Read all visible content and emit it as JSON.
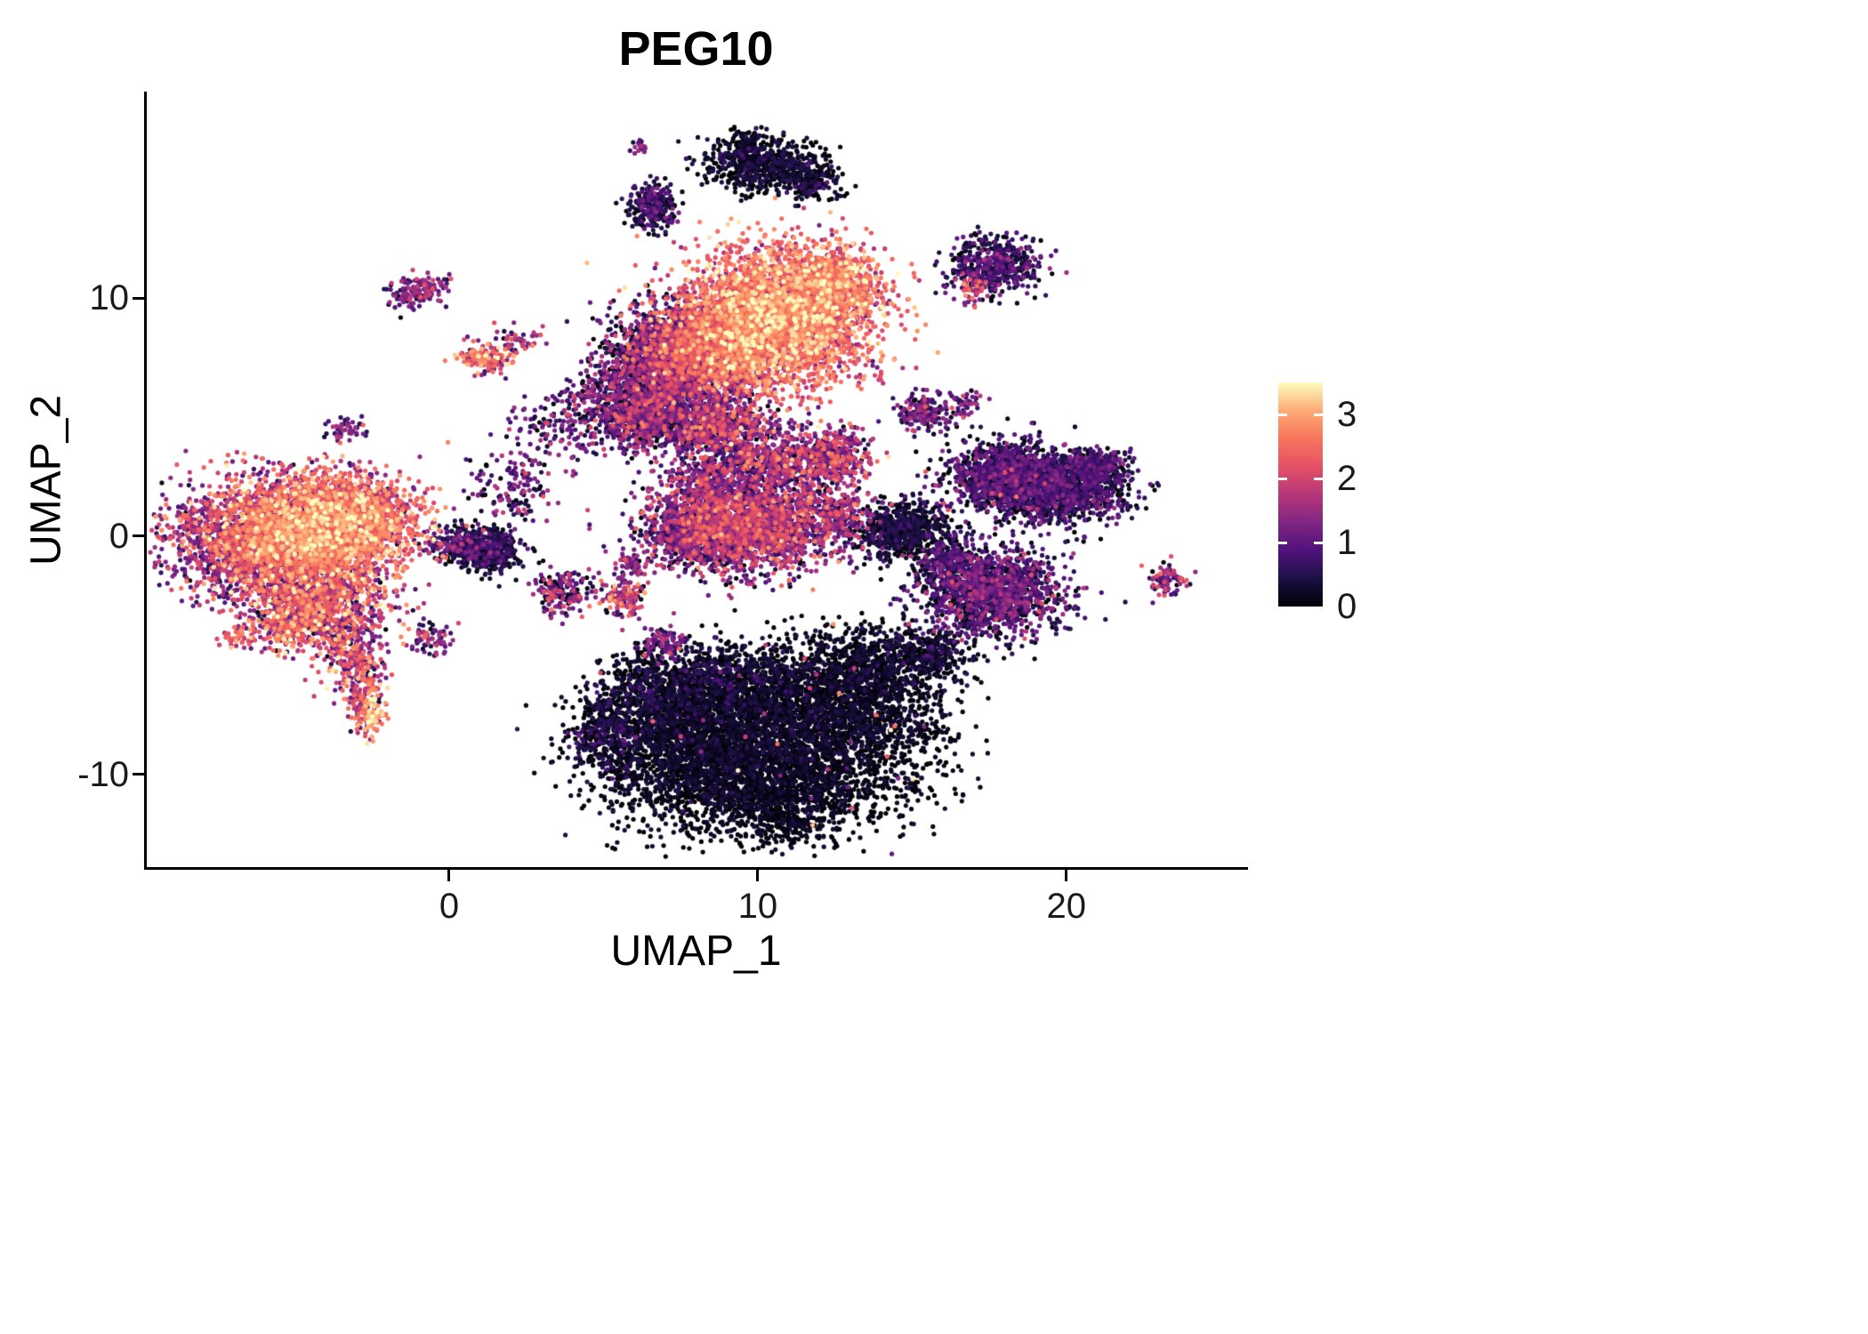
{
  "chart_data": {
    "type": "scatter",
    "title": "PEG10",
    "xlabel": "UMAP_1",
    "ylabel": "UMAP_2",
    "x_ticks": [
      "0",
      "10",
      "20"
    ],
    "x_tick_values": [
      0,
      10,
      20
    ],
    "y_ticks": [
      "10",
      "0",
      "-10"
    ],
    "y_tick_values": [
      10,
      0,
      -10
    ],
    "xlim": [
      -9.8,
      25.8
    ],
    "ylim": [
      -13.9,
      18.6
    ],
    "grid": false,
    "background": "#ffffff",
    "legend_position": "right",
    "point_radius": 2.6,
    "colorbar": {
      "ticks": [
        "0",
        "1",
        "2",
        "3"
      ],
      "tick_values": [
        0,
        1,
        2,
        3
      ],
      "max": 3.5,
      "colors": [
        {
          "t": 0.0,
          "c": "#000004"
        },
        {
          "t": 0.13,
          "c": "#1d1147"
        },
        {
          "t": 0.25,
          "c": "#51127c"
        },
        {
          "t": 0.38,
          "c": "#822681"
        },
        {
          "t": 0.5,
          "c": "#b73779"
        },
        {
          "t": 0.63,
          "c": "#e75263"
        },
        {
          "t": 0.75,
          "c": "#f8765c"
        },
        {
          "t": 0.87,
          "c": "#fda873"
        },
        {
          "t": 1.0,
          "c": "#fcfdbf"
        }
      ]
    },
    "clusters": [
      {
        "x": -4.6,
        "y": 0.2,
        "sx": 1.5,
        "sy": 1.1,
        "n": 2600,
        "e": 2.4,
        "es": 0.55
      },
      {
        "x": -6.3,
        "y": -0.3,
        "sx": 1.5,
        "sy": 1.2,
        "n": 1600,
        "e": 1.4,
        "es": 0.7
      },
      {
        "x": -3.0,
        "y": 0.8,
        "sx": 1.0,
        "sy": 0.9,
        "n": 900,
        "e": 2.1,
        "es": 0.7
      },
      {
        "x": -4.2,
        "y": -2.8,
        "sx": 1.1,
        "sy": 0.9,
        "n": 900,
        "e": 1.7,
        "es": 0.8
      },
      {
        "x": -5.2,
        "y": -3.8,
        "sx": 0.6,
        "sy": 0.5,
        "n": 250,
        "e": 1.9,
        "es": 0.8
      },
      {
        "x": -3.2,
        "y": -5.0,
        "sx": 0.5,
        "sy": 0.7,
        "n": 220,
        "e": 1.6,
        "es": 0.8
      },
      {
        "x": -2.7,
        "y": -6.6,
        "sx": 0.35,
        "sy": 0.8,
        "n": 160,
        "e": 2.0,
        "es": 0.8
      },
      {
        "x": -2.45,
        "y": -7.6,
        "sx": 0.22,
        "sy": 0.3,
        "n": 70,
        "e": 2.8,
        "es": 0.5
      },
      {
        "x": -6.8,
        "y": -4.3,
        "sx": 0.3,
        "sy": 0.2,
        "n": 35,
        "e": 2.4,
        "es": 0.5
      },
      {
        "x": -3.3,
        "y": 4.6,
        "sx": 0.3,
        "sy": 0.3,
        "n": 45,
        "e": 1.1,
        "es": 0.5
      },
      {
        "x": -1.3,
        "y": 10.2,
        "sx": 0.35,
        "sy": 0.35,
        "n": 90,
        "e": 1.0,
        "es": 0.5
      },
      {
        "x": -0.55,
        "y": 10.45,
        "sx": 0.3,
        "sy": 0.25,
        "n": 60,
        "e": 1.2,
        "es": 0.6
      },
      {
        "x": 1.2,
        "y": 7.55,
        "sx": 0.45,
        "sy": 0.3,
        "n": 140,
        "e": 2.1,
        "es": 0.7
      },
      {
        "x": 2.2,
        "y": 8.2,
        "sx": 0.4,
        "sy": 0.3,
        "n": 50,
        "e": 1.2,
        "es": 0.6
      },
      {
        "x": 2.0,
        "y": 2.0,
        "sx": 0.8,
        "sy": 0.8,
        "n": 140,
        "e": 0.9,
        "es": 0.6
      },
      {
        "x": 3.7,
        "y": 4.7,
        "sx": 0.9,
        "sy": 0.8,
        "n": 170,
        "e": 0.9,
        "es": 0.6
      },
      {
        "x": 4.8,
        "y": 5.8,
        "sx": 0.5,
        "sy": 0.5,
        "n": 90,
        "e": 1.1,
        "es": 0.6
      },
      {
        "x": 1.2,
        "y": -0.6,
        "sx": 0.55,
        "sy": 0.5,
        "n": 450,
        "e": 0.3,
        "es": 0.35
      },
      {
        "x": 0.2,
        "y": -0.3,
        "sx": 0.5,
        "sy": 0.4,
        "n": 150,
        "e": 0.7,
        "es": 0.5
      },
      {
        "x": -0.6,
        "y": -4.3,
        "sx": 0.35,
        "sy": 0.3,
        "n": 70,
        "e": 1.2,
        "es": 0.7
      },
      {
        "x": 3.7,
        "y": -2.3,
        "sx": 0.5,
        "sy": 0.45,
        "n": 160,
        "e": 1.0,
        "es": 0.7
      },
      {
        "x": 5.6,
        "y": -2.6,
        "sx": 0.45,
        "sy": 0.4,
        "n": 130,
        "e": 1.5,
        "es": 0.8
      },
      {
        "x": 6.9,
        "y": -4.4,
        "sx": 0.4,
        "sy": 0.35,
        "n": 100,
        "e": 0.9,
        "es": 0.6
      },
      {
        "x": 5.9,
        "y": -1.2,
        "sx": 0.3,
        "sy": 0.3,
        "n": 60,
        "e": 1.1,
        "es": 0.6
      },
      {
        "x": 6.6,
        "y": 6.6,
        "sx": 0.9,
        "sy": 1.3,
        "n": 1700,
        "e": 0.7,
        "es": 0.6
      },
      {
        "x": 7.6,
        "y": 7.6,
        "sx": 0.8,
        "sy": 0.9,
        "n": 900,
        "e": 1.3,
        "es": 0.7
      },
      {
        "x": 6.2,
        "y": 4.9,
        "sx": 0.6,
        "sy": 0.6,
        "n": 400,
        "e": 0.9,
        "es": 0.7
      },
      {
        "x": 10.6,
        "y": 9.2,
        "sx": 1.5,
        "sy": 1.4,
        "n": 3800,
        "e": 2.4,
        "es": 0.55
      },
      {
        "x": 8.9,
        "y": 8.0,
        "sx": 0.9,
        "sy": 1.0,
        "n": 1200,
        "e": 1.7,
        "es": 0.7
      },
      {
        "x": 12.3,
        "y": 10.5,
        "sx": 0.8,
        "sy": 0.8,
        "n": 700,
        "e": 2.3,
        "es": 0.6
      },
      {
        "x": 8.6,
        "y": 4.6,
        "sx": 0.9,
        "sy": 0.7,
        "n": 800,
        "e": 1.2,
        "es": 0.7
      },
      {
        "x": 10.4,
        "y": 3.1,
        "sx": 0.9,
        "sy": 0.7,
        "n": 600,
        "e": 1.1,
        "es": 0.7
      },
      {
        "x": 12.4,
        "y": 3.3,
        "sx": 0.7,
        "sy": 0.6,
        "n": 350,
        "e": 1.4,
        "es": 0.7
      },
      {
        "x": 9.7,
        "y": 0.4,
        "sx": 1.5,
        "sy": 0.9,
        "n": 2200,
        "e": 1.3,
        "es": 0.65
      },
      {
        "x": 7.8,
        "y": 0.0,
        "sx": 0.7,
        "sy": 0.6,
        "n": 500,
        "e": 0.8,
        "es": 0.6
      },
      {
        "x": 12.6,
        "y": 0.9,
        "sx": 0.5,
        "sy": 0.5,
        "n": 200,
        "e": 1.2,
        "es": 0.6
      },
      {
        "x": 8.3,
        "y": 2.2,
        "sx": 0.6,
        "sy": 0.5,
        "n": 300,
        "e": 1.0,
        "es": 0.6
      },
      {
        "x": 10.2,
        "y": 15.6,
        "sx": 0.9,
        "sy": 0.55,
        "n": 600,
        "e": 0.15,
        "es": 0.25
      },
      {
        "x": 11.7,
        "y": 14.8,
        "sx": 0.5,
        "sy": 0.4,
        "n": 150,
        "e": 0.2,
        "es": 0.3
      },
      {
        "x": 9.6,
        "y": 16.5,
        "sx": 0.4,
        "sy": 0.3,
        "n": 80,
        "e": 0.15,
        "es": 0.2
      },
      {
        "x": 6.6,
        "y": 13.8,
        "sx": 0.4,
        "sy": 0.5,
        "n": 260,
        "e": 0.45,
        "es": 0.4
      },
      {
        "x": 6.1,
        "y": 16.4,
        "sx": 0.15,
        "sy": 0.15,
        "n": 18,
        "e": 1.0,
        "es": 0.4
      },
      {
        "x": 17.7,
        "y": 11.4,
        "sx": 0.75,
        "sy": 0.6,
        "n": 480,
        "e": 0.5,
        "es": 0.45
      },
      {
        "x": 16.9,
        "y": 10.4,
        "sx": 0.3,
        "sy": 0.3,
        "n": 60,
        "e": 1.5,
        "es": 0.8
      },
      {
        "x": 15.4,
        "y": 5.2,
        "sx": 0.45,
        "sy": 0.4,
        "n": 180,
        "e": 0.8,
        "es": 0.6
      },
      {
        "x": 16.8,
        "y": 5.6,
        "sx": 0.25,
        "sy": 0.25,
        "n": 40,
        "e": 0.9,
        "es": 0.5
      },
      {
        "x": 18.0,
        "y": 2.5,
        "sx": 0.9,
        "sy": 0.7,
        "n": 1200,
        "e": 0.5,
        "es": 0.45
      },
      {
        "x": 19.9,
        "y": 2.0,
        "sx": 1.0,
        "sy": 0.7,
        "n": 1100,
        "e": 0.45,
        "es": 0.4
      },
      {
        "x": 21.0,
        "y": 2.9,
        "sx": 0.5,
        "sy": 0.4,
        "n": 250,
        "e": 0.5,
        "es": 0.4
      },
      {
        "x": 14.7,
        "y": 0.3,
        "sx": 0.8,
        "sy": 0.6,
        "n": 600,
        "e": 0.2,
        "es": 0.25
      },
      {
        "x": 17.6,
        "y": -2.4,
        "sx": 1.1,
        "sy": 0.9,
        "n": 1400,
        "e": 0.65,
        "es": 0.5
      },
      {
        "x": 16.2,
        "y": -1.2,
        "sx": 0.5,
        "sy": 0.5,
        "n": 250,
        "e": 0.5,
        "es": 0.4
      },
      {
        "x": 23.3,
        "y": -1.9,
        "sx": 0.3,
        "sy": 0.35,
        "n": 80,
        "e": 1.3,
        "es": 0.6
      },
      {
        "x": 8.3,
        "y": -8.6,
        "sx": 1.8,
        "sy": 1.5,
        "n": 2400,
        "e": 0.1,
        "es": 0.18
      },
      {
        "x": 12.3,
        "y": -7.6,
        "sx": 1.8,
        "sy": 1.4,
        "n": 2200,
        "e": 0.1,
        "es": 0.18
      },
      {
        "x": 10.3,
        "y": -10.6,
        "sx": 2.2,
        "sy": 0.9,
        "n": 1400,
        "e": 0.08,
        "es": 0.15
      },
      {
        "x": 13.8,
        "y": -5.4,
        "sx": 1.3,
        "sy": 0.8,
        "n": 700,
        "e": 0.12,
        "es": 0.2
      },
      {
        "x": 6.6,
        "y": -6.6,
        "sx": 0.9,
        "sy": 0.8,
        "n": 500,
        "e": 0.15,
        "es": 0.25
      },
      {
        "x": 5.2,
        "y": -8.3,
        "sx": 0.7,
        "sy": 0.8,
        "n": 350,
        "e": 0.2,
        "es": 0.3
      },
      {
        "x": 9.0,
        "y": -6.0,
        "sx": 1.2,
        "sy": 0.7,
        "n": 600,
        "e": 0.15,
        "es": 0.3
      },
      {
        "x": 15.8,
        "y": -4.8,
        "sx": 0.6,
        "sy": 0.5,
        "n": 200,
        "e": 0.2,
        "es": 0.25
      },
      {
        "x": 11.0,
        "y": -12.2,
        "sx": 0.8,
        "sy": 0.4,
        "n": 150,
        "e": 0.1,
        "es": 0.15
      },
      {
        "x": 10.5,
        "y": -8.0,
        "sx": 3.0,
        "sy": 2.0,
        "n": 45,
        "e": 1.6,
        "es": 0.8
      },
      {
        "x": 18.0,
        "y": 2.5,
        "sx": 1.5,
        "sy": 0.8,
        "n": 30,
        "e": 1.5,
        "es": 0.6
      },
      {
        "x": 17.6,
        "y": -2.4,
        "sx": 1.2,
        "sy": 0.8,
        "n": 25,
        "e": 1.5,
        "es": 0.6
      }
    ]
  }
}
